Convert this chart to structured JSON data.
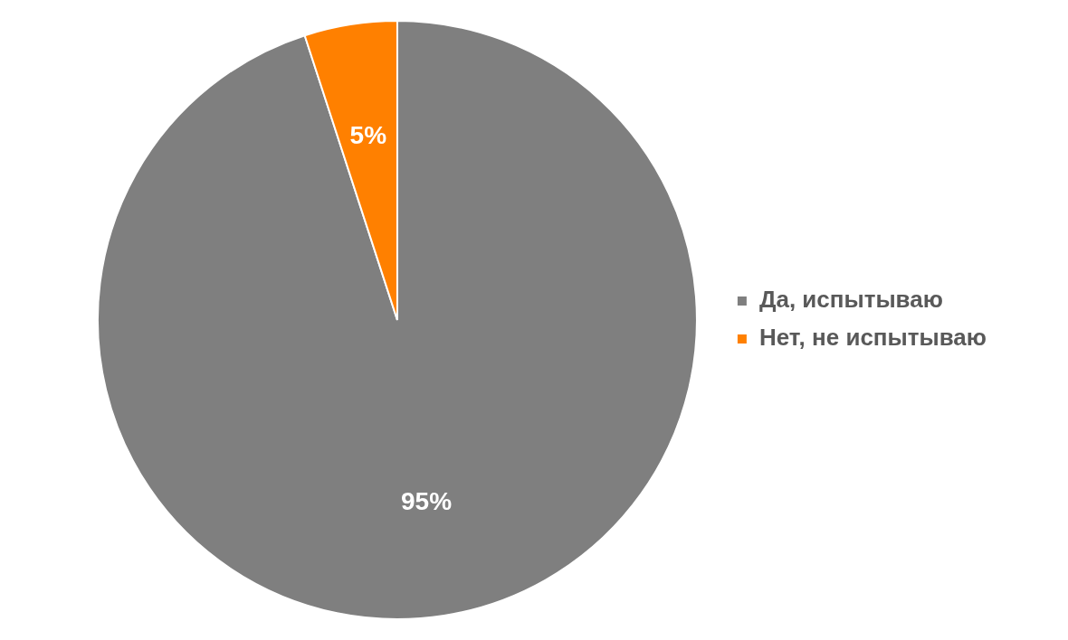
{
  "chart_data": {
    "type": "pie",
    "categories": [
      "Да, испытываю",
      "Нет, не испытываю"
    ],
    "values": [
      95,
      5
    ],
    "colors": [
      "#7f7f7f",
      "#ff8000"
    ],
    "value_labels": [
      "95%",
      "5%"
    ],
    "legend": "right"
  }
}
